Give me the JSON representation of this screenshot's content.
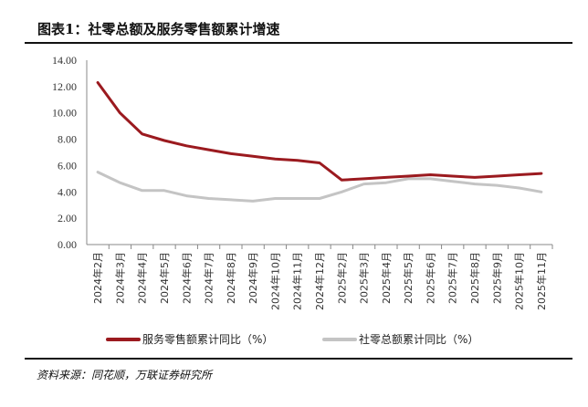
{
  "header": {
    "title": "图表1：社零总额及服务零售额累计增速"
  },
  "footer": {
    "source": "资料来源：同花顺，万联证券研究所"
  },
  "chart_data": {
    "type": "line",
    "title": "",
    "xlabel": "",
    "ylabel": "",
    "ylim": [
      0,
      14
    ],
    "yticks": [
      "0.00",
      "2.00",
      "4.00",
      "6.00",
      "8.00",
      "10.00",
      "12.00",
      "14.00"
    ],
    "grid": false,
    "legend_position": "bottom",
    "categories": [
      "2024年2月",
      "2024年3月",
      "2024年4月",
      "2024年5月",
      "2024年6月",
      "2024年7月",
      "2024年8月",
      "2024年9月",
      "2024年10月",
      "2024年11月",
      "2024年12月",
      "2025年2月",
      "2025年3月",
      "2025年4月",
      "2025年5月",
      "2025年6月",
      "2025年7月",
      "2025年8月",
      "2025年9月",
      "2025年10月",
      "2025年11月"
    ],
    "series": [
      {
        "name": "服务零售额累计同比（%）",
        "color": "#9b1a1f",
        "values": [
          12.3,
          10.0,
          8.4,
          7.9,
          7.5,
          7.2,
          6.9,
          6.7,
          6.5,
          6.4,
          6.2,
          4.9,
          5.0,
          5.1,
          5.2,
          5.3,
          5.2,
          5.1,
          5.2,
          5.3,
          5.4
        ]
      },
      {
        "name": "社零总额累计同比（%）",
        "color": "#c4c4c4",
        "values": [
          5.5,
          4.7,
          4.1,
          4.1,
          3.7,
          3.5,
          3.4,
          3.3,
          3.5,
          3.5,
          3.5,
          4.0,
          4.6,
          4.7,
          5.0,
          5.0,
          4.8,
          4.6,
          4.5,
          4.3,
          4.0
        ]
      }
    ]
  }
}
